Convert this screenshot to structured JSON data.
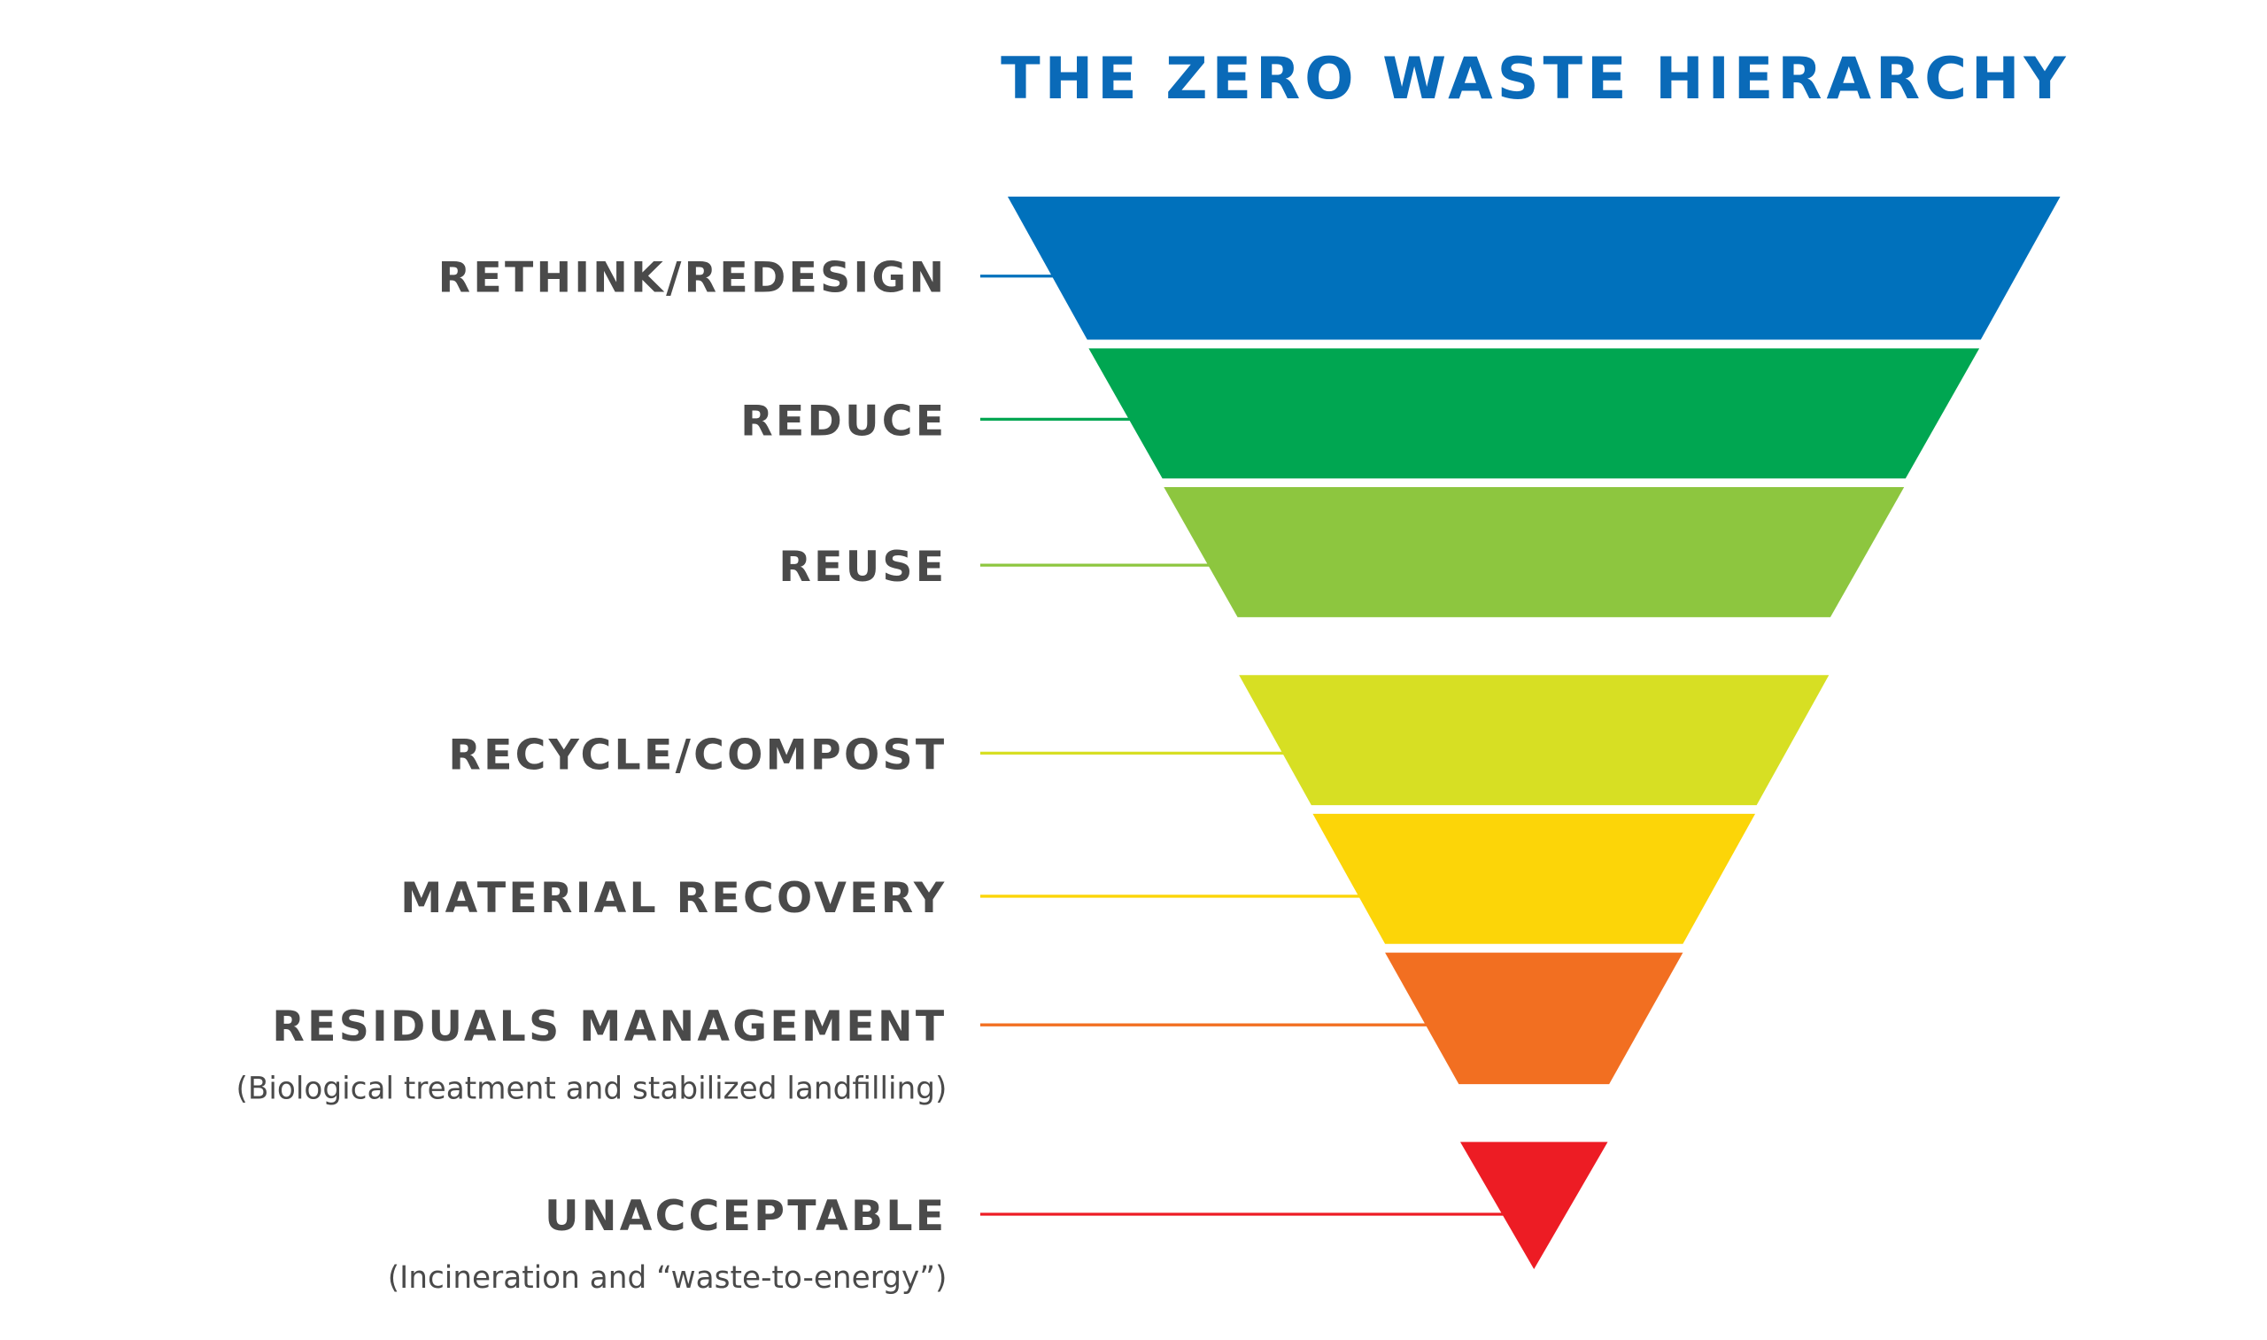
{
  "title": "THE ZERO WASTE HIERARCHY",
  "levels": [
    {
      "label": "RETHINK/REDESIGN",
      "color": "#0071bc"
    },
    {
      "label": "REDUCE",
      "color": "#00a651"
    },
    {
      "label": "REUSE",
      "color": "#8dc63f"
    },
    {
      "label": "RECYCLE/COMPOST",
      "color": "#d7df23"
    },
    {
      "label": "MATERIAL RECOVERY",
      "color": "#fcd508"
    },
    {
      "label": "RESIDUALS MANAGEMENT",
      "note": "(Biological treatment and stabilized landfilling)",
      "color": "#f26f21"
    },
    {
      "label": "UNACCEPTABLE",
      "note": "(Incineration and “waste-to-energy”)",
      "color": "#ed1c24"
    }
  ]
}
